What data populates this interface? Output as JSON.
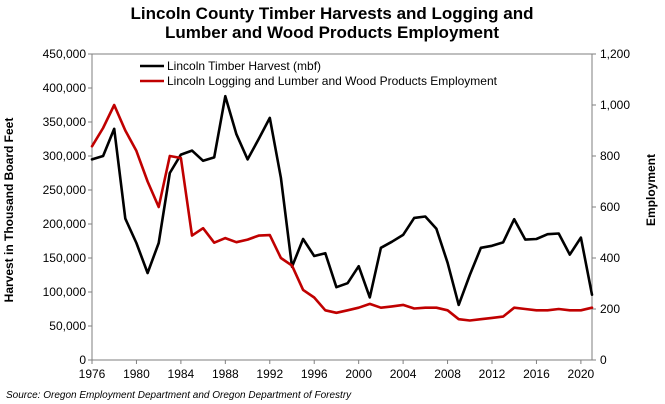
{
  "chart_data": {
    "type": "line",
    "title_line1": "Lincoln County Timber Harvests and Logging and",
    "title_line2": "Lumber and Wood Products Employment",
    "ylabel_left": "Harvest in Thousand Board Feet",
    "ylabel_right": "Employment",
    "source": "Source: Oregon Employment Department and Oregon Department of Forestry",
    "xlim": [
      1976,
      2021
    ],
    "ylim_left": [
      0,
      450000
    ],
    "ylim_right": [
      0,
      1200
    ],
    "x_ticks": [
      "1976",
      "1980",
      "1984",
      "1988",
      "1992",
      "1996",
      "2000",
      "2004",
      "2008",
      "2012",
      "2016",
      "2020"
    ],
    "y_ticks_left": [
      "0",
      "50,000",
      "100,000",
      "150,000",
      "200,000",
      "250,000",
      "300,000",
      "350,000",
      "400,000",
      "450,000"
    ],
    "y_ticks_right": [
      "0",
      "200",
      "400",
      "600",
      "800",
      "1,000",
      "1,200"
    ],
    "legend_position": "top-left",
    "grid": false,
    "x": [
      1976,
      1977,
      1978,
      1979,
      1980,
      1981,
      1982,
      1983,
      1984,
      1985,
      1986,
      1987,
      1988,
      1989,
      1990,
      1991,
      1992,
      1993,
      1994,
      1995,
      1996,
      1997,
      1998,
      1999,
      2000,
      2001,
      2002,
      2003,
      2004,
      2005,
      2006,
      2007,
      2008,
      2009,
      2010,
      2011,
      2012,
      2013,
      2014,
      2015,
      2016,
      2017,
      2018,
      2019,
      2020,
      2021
    ],
    "series": [
      {
        "name": "Lincoln Timber Harvest (mbf)",
        "axis": "left",
        "color": "#000000",
        "values": [
          295000,
          300000,
          340000,
          208000,
          172000,
          128000,
          172000,
          275000,
          302000,
          308000,
          293000,
          298000,
          388000,
          332000,
          295000,
          325000,
          356000,
          268000,
          137000,
          178000,
          153000,
          157000,
          107000,
          113000,
          138000,
          92000,
          165000,
          174000,
          184000,
          209000,
          211000,
          193000,
          143000,
          81000,
          125000,
          165000,
          168000,
          173000,
          207000,
          177000,
          178000,
          185000,
          186000,
          155000,
          180000,
          96000
        ]
      },
      {
        "name": "Lincoln Logging and Lumber and Wood Products Employment",
        "axis": "right",
        "color": "#c00000",
        "values": [
          838,
          910,
          1000,
          900,
          820,
          700,
          600,
          800,
          792,
          488,
          517,
          460,
          478,
          462,
          472,
          488,
          490,
          400,
          370,
          275,
          245,
          195,
          185,
          195,
          205,
          220,
          205,
          210,
          216,
          202,
          205,
          205,
          195,
          160,
          155,
          160,
          165,
          170,
          205,
          200,
          195,
          195,
          200,
          195,
          195,
          205
        ]
      }
    ]
  }
}
